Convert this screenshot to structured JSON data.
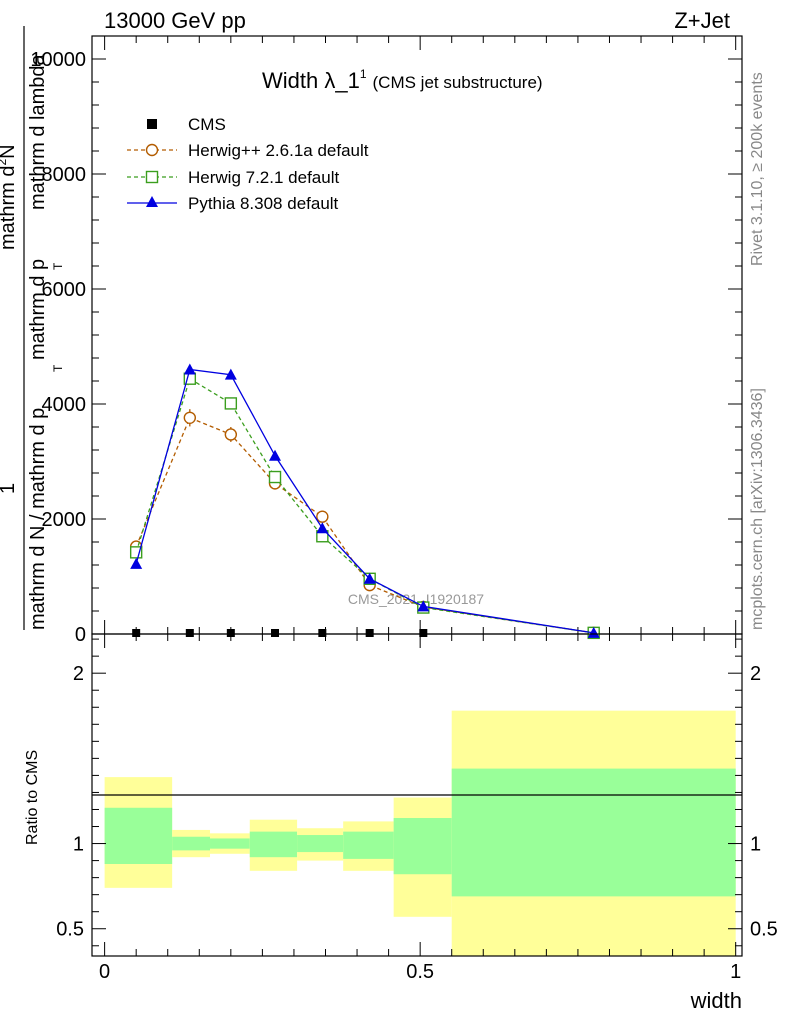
{
  "header": {
    "left": "13000 GeV pp",
    "right": "Z+Jet"
  },
  "plot_title": {
    "main": "Width λ_1",
    "superscript": "1",
    "subtitle": "(CMS jet substructure)"
  },
  "side_labels": {
    "rivet": "Rivet 3.1.10, ≥ 200k events",
    "mcplots": "mcplots.cern.ch [arXiv:1306.3436]"
  },
  "watermark": "CMS_2021_I1920187",
  "chart_data": [
    {
      "type": "line",
      "panel": "main",
      "ylabel_numerator": "1",
      "ylabel_line1": "mathrm d N / mathrm d p",
      "ylabel_line2": "mathrm d^2N",
      "ylabel_line3": "mathrm d p",
      "ylabel_line4": "mathrm d lambda",
      "ylabel_sub": "T",
      "ylabel_text_a": "mathrm d N / mathrm d p",
      "ylabel_text_b": "mathrm d p",
      "ylabel_text_c": "mathrm d lambda",
      "ylabel_top_a": "mathrm d",
      "ylabel_top_b": "N",
      "ylabel_top_sup": "2",
      "ylabel_tail": "mathrm d lambda",
      "ylabel_mid": "mathrm d p",
      "ylabel_mid2": "mathrm d N",
      "ylabel_left": "mathrm d N / mathrm d p",
      "x": [
        0.05,
        0.135,
        0.2,
        0.27,
        0.345,
        0.42,
        0.505,
        0.775
      ],
      "xlim": [
        -0.02,
        1.01
      ],
      "ylim": [
        0,
        10400
      ],
      "yticks": [
        0,
        2000,
        4000,
        6000,
        8000,
        10000
      ],
      "ytick_labels": [
        "0",
        "2000",
        "4000",
        "6000",
        "8000",
        "10000"
      ],
      "series": [
        {
          "name": "CMS",
          "marker": "square-filled",
          "color": "#000000",
          "values": [
            0,
            0,
            0,
            0,
            0,
            0,
            0,
            0
          ]
        },
        {
          "name": "Herwig++ 2.6.1a default",
          "marker": "circle-open",
          "color": "#b35c00",
          "dashed": true,
          "values": [
            1520,
            3760,
            3470,
            2620,
            2040,
            850,
            470,
            20
          ],
          "errors": [
            40,
            150,
            130,
            110,
            80,
            50,
            30,
            5
          ]
        },
        {
          "name": "Herwig 7.2.1 default",
          "marker": "square-open",
          "color": "#3b9e1e",
          "dashed": true,
          "values": [
            1420,
            4440,
            4010,
            2730,
            1700,
            960,
            460,
            20
          ]
        },
        {
          "name": "Pythia 8.308 default",
          "marker": "triangle-filled",
          "color": "#0000e0",
          "dashed": false,
          "values": [
            1220,
            4600,
            4510,
            3100,
            1840,
            960,
            480,
            20
          ]
        }
      ]
    },
    {
      "type": "area",
      "panel": "ratio",
      "ylabel": "Ratio to CMS",
      "xlabel": "width",
      "xlim": [
        -0.02,
        1.01
      ],
      "ylim": [
        0.34,
        2.23
      ],
      "yticks": [
        0.5,
        1,
        2
      ],
      "ytick_labels": [
        "0.5",
        "1",
        "2"
      ],
      "xticks": [
        0,
        0.5,
        1
      ],
      "xtick_labels": [
        "0",
        "0.5",
        "1"
      ],
      "bins": [
        {
          "lo": 0.0,
          "hi": 0.107,
          "yellow": [
            0.74,
            1.39
          ],
          "green": [
            0.88,
            1.21
          ]
        },
        {
          "lo": 0.107,
          "hi": 0.167,
          "yellow": [
            0.92,
            1.08
          ],
          "green": [
            0.96,
            1.04
          ]
        },
        {
          "lo": 0.167,
          "hi": 0.23,
          "yellow": [
            0.94,
            1.06
          ],
          "green": [
            0.97,
            1.03
          ]
        },
        {
          "lo": 0.23,
          "hi": 0.305,
          "yellow": [
            0.84,
            1.14
          ],
          "green": [
            0.92,
            1.07
          ]
        },
        {
          "lo": 0.305,
          "hi": 0.378,
          "yellow": [
            0.9,
            1.09
          ],
          "green": [
            0.95,
            1.05
          ]
        },
        {
          "lo": 0.378,
          "hi": 0.458,
          "yellow": [
            0.84,
            1.13
          ],
          "green": [
            0.91,
            1.07
          ]
        },
        {
          "lo": 0.458,
          "hi": 0.55,
          "yellow": [
            0.57,
            1.27
          ],
          "green": [
            0.82,
            1.15
          ]
        },
        {
          "lo": 0.55,
          "hi": 1.0,
          "yellow": [
            0.34,
            1.78
          ],
          "green": [
            0.69,
            1.44
          ]
        }
      ]
    }
  ],
  "colors": {
    "yellow_band": "#ffff99",
    "green_band": "#99ff99",
    "axis": "#000000",
    "side_text": "#888888",
    "watermark": "#999999"
  }
}
